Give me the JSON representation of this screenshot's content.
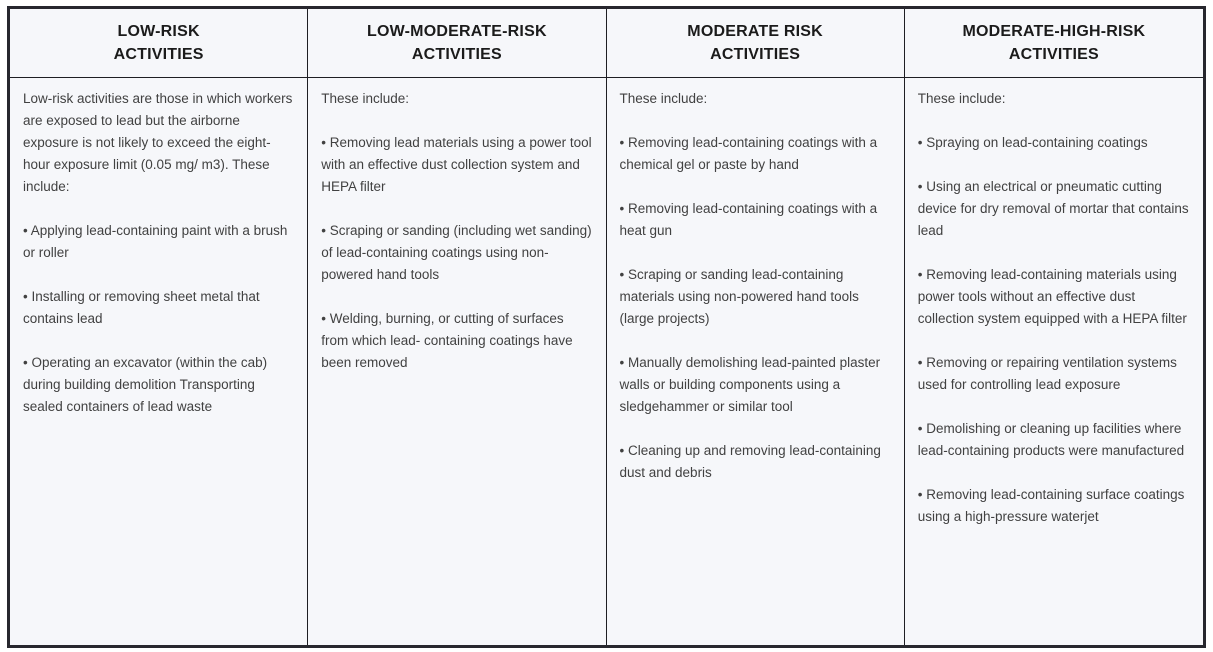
{
  "colors": {
    "outer_border": "#27272e",
    "inner_border": "#1e1e23",
    "cell_background": "#f6f7fa",
    "header_text": "#1b1b1b",
    "body_text": "#414141"
  },
  "table": {
    "columns": [
      {
        "header": [
          "LOW-RISK",
          "ACTIVITIES"
        ],
        "intro": "Low-risk activities are those in which workers are exposed to lead but the airborne exposure is not likely to exceed the eight-hour exposure limit (0.05 mg/ m3). These include:",
        "items": [
          "• Applying lead-containing paint with a brush or roller",
          "• Installing or removing sheet metal that contains lead",
          "• Operating an excavator (within the cab) during building demolition Transporting sealed containers of lead waste"
        ]
      },
      {
        "header": [
          "LOW-MODERATE-RISK",
          "ACTIVITIES"
        ],
        "intro": "These include:",
        "items": [
          "• Removing lead materials using a power tool with an effective dust collection system and HEPA filter",
          "• Scraping or sanding (including wet sanding) of lead-containing coatings using non-powered hand tools",
          "• Welding, burning, or cutting of surfaces from which lead- containing coatings have been removed"
        ]
      },
      {
        "header": [
          "MODERATE RISK",
          "ACTIVITIES"
        ],
        "intro": "These include:",
        "items": [
          "• Removing lead-containing coatings with a chemical gel or paste by hand",
          "• Removing lead-containing coatings with a heat gun",
          "• Scraping or sanding lead-containing materials using non-powered hand tools (large projects)",
          "• Manually demolishing lead-painted plaster walls or building components using a sledgehammer or similar tool",
          "• Cleaning up and removing lead-containing dust and debris"
        ]
      },
      {
        "header": [
          "MODERATE-HIGH-RISK",
          "ACTIVITIES"
        ],
        "intro": "These include:",
        "items": [
          "• Spraying on lead-containing coatings",
          "• Using an electrical or pneumatic cutting device for dry removal of mortar that contains lead",
          "• Removing lead-containing materials using power tools without an effective dust collection system equipped with a HEPA filter",
          "• Removing or repairing ventilation systems used for controlling lead exposure",
          "• Demolishing or cleaning up facilities where lead-containing products were manufactured",
          "• Removing lead-containing surface coatings using a high-pressure waterjet"
        ]
      }
    ]
  }
}
